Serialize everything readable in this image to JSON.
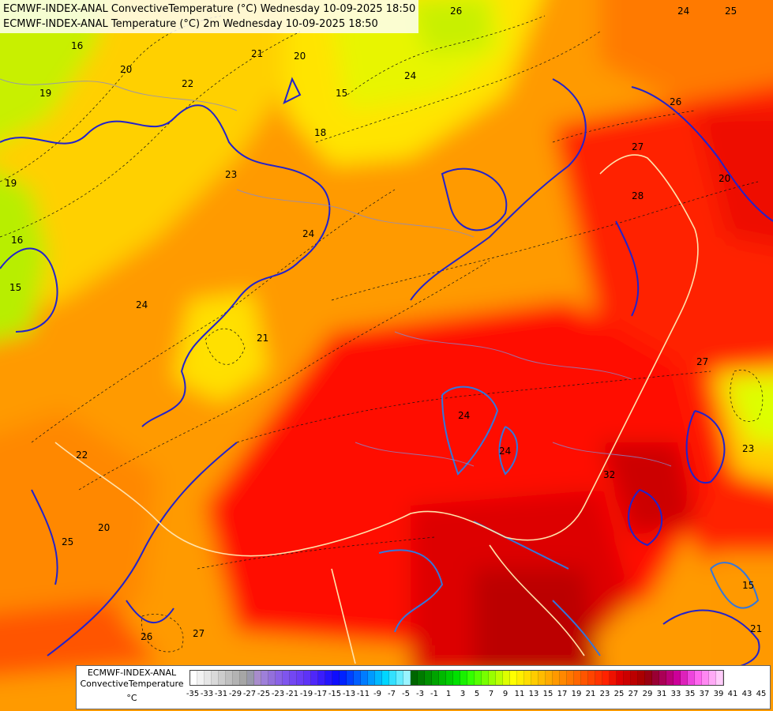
{
  "title": {
    "line1": "ECMWF-INDEX-ANAL ConvectiveTemperature (°C) Wednesday 10-09-2025 18:50",
    "line2": "ECMWF-INDEX-ANAL Temperature (°C) 2m Wednesday 10-09-2025 18:50"
  },
  "legend": {
    "label_line1": "ECMWF-INDEX-ANAL",
    "label_line2": "ConvectiveTemperature",
    "unit": "°C",
    "ticks": [
      "-35",
      "-33",
      "-31",
      "-29",
      "-27",
      "-25",
      "-23",
      "-21",
      "-19",
      "-17",
      "-15",
      "-13",
      "-11",
      "-9",
      "-7",
      "-5",
      "-3",
      "-1",
      "1",
      "3",
      "5",
      "7",
      "9",
      "11",
      "13",
      "15",
      "17",
      "19",
      "21",
      "23",
      "25",
      "27",
      "29",
      "31",
      "33",
      "35",
      "37",
      "39",
      "41",
      "43",
      "45"
    ],
    "colors": [
      "#ffffff",
      "#f2f2f2",
      "#e6e6e6",
      "#d9d9d9",
      "#cccccc",
      "#bfbfbf",
      "#b3b3b3",
      "#a6a6a6",
      "#9999aa",
      "#a88ccc",
      "#9e7fd9",
      "#9370db",
      "#8a62e6",
      "#7f55ee",
      "#7347f2",
      "#6a3df5",
      "#5e33f7",
      "#4f27f9",
      "#3a1dfb",
      "#2415fc",
      "#0f0dfd",
      "#0022ff",
      "#0040ff",
      "#005eff",
      "#007cff",
      "#009aff",
      "#00b8ff",
      "#00d6ff",
      "#33e0ff",
      "#66ecff",
      "#99f4ff",
      "#006600",
      "#007a00",
      "#008f00",
      "#00a300",
      "#00b800",
      "#00cc00",
      "#00e000",
      "#19f000",
      "#33ff00",
      "#55ff00",
      "#77ff00",
      "#99ff00",
      "#bbff00",
      "#ddff00",
      "#ffff00",
      "#ffee00",
      "#ffdd00",
      "#ffcc00",
      "#ffbb00",
      "#ffaa00",
      "#ff9900",
      "#ff8800",
      "#ff7700",
      "#ff6600",
      "#ff5500",
      "#ff4400",
      "#ff3300",
      "#ff2200",
      "#ee1100",
      "#dd0000",
      "#cc0000",
      "#bb0000",
      "#aa0000",
      "#990011",
      "#990033",
      "#aa0055",
      "#bb0077",
      "#cc0099",
      "#dd22bb",
      "#ee44dd",
      "#ff66ee",
      "#ff88f2",
      "#ffaaf6",
      "#ffccfa"
    ]
  },
  "contour_labels": [
    {
      "text": "16"
    },
    {
      "text": "20"
    },
    {
      "text": "19"
    },
    {
      "text": "22"
    },
    {
      "text": "21"
    },
    {
      "text": "20"
    },
    {
      "text": "18"
    },
    {
      "text": "15"
    },
    {
      "text": "23"
    },
    {
      "text": "24"
    },
    {
      "text": "26"
    },
    {
      "text": "25"
    },
    {
      "text": "24"
    },
    {
      "text": "28"
    },
    {
      "text": "27"
    },
    {
      "text": "26"
    },
    {
      "text": "20"
    },
    {
      "text": "24"
    },
    {
      "text": "21"
    },
    {
      "text": "22"
    },
    {
      "text": "25"
    },
    {
      "text": "20"
    },
    {
      "text": "24"
    },
    {
      "text": "24"
    },
    {
      "text": "32"
    },
    {
      "text": "27"
    },
    {
      "text": "23"
    },
    {
      "text": "26"
    },
    {
      "text": "27"
    },
    {
      "text": "15"
    },
    {
      "text": "21"
    },
    {
      "text": "19"
    },
    {
      "text": "16"
    },
    {
      "text": "15"
    },
    {
      "text": "24"
    }
  ]
}
